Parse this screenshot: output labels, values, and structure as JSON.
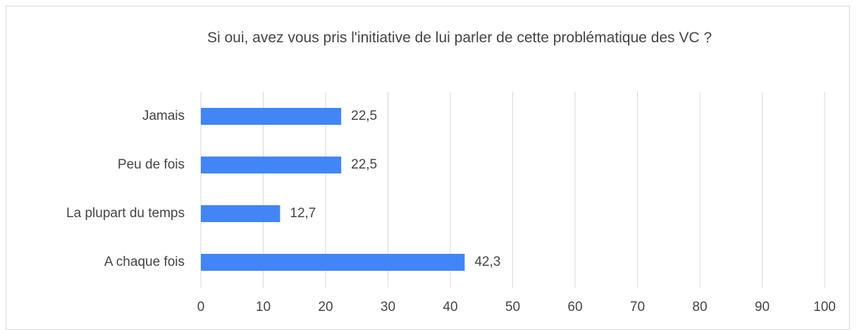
{
  "chart_data": {
    "type": "bar",
    "orientation": "horizontal",
    "title": "Si oui, avez vous pris l'initiative de lui parler de cette problématique des VC ?",
    "categories": [
      "Jamais",
      "Peu de fois",
      "La plupart du temps",
      "A chaque fois"
    ],
    "values": [
      22.5,
      22.5,
      12.7,
      42.3
    ],
    "value_labels": [
      "22,5",
      "22,5",
      "12,7",
      "42,3"
    ],
    "color": "#4285f4",
    "xlim": [
      0,
      100
    ],
    "xticks": [
      0,
      10,
      20,
      30,
      40,
      50,
      60,
      70,
      80,
      90,
      100
    ],
    "grid": true
  }
}
